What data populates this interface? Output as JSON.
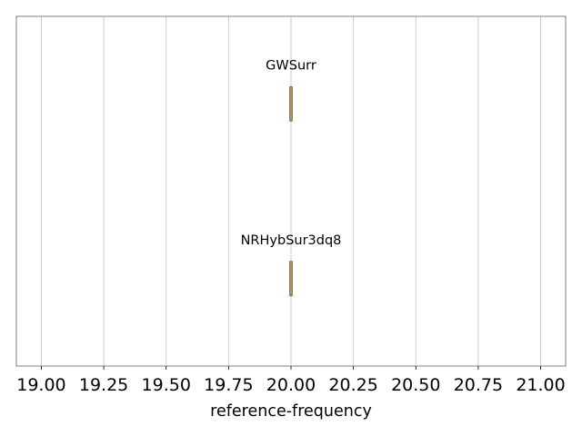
{
  "chart_data": {
    "type": "box",
    "orientation": "horizontal",
    "title": "",
    "xlabel": "reference-frequency",
    "ylabel": "",
    "xlim": [
      18.9,
      21.1
    ],
    "xticks": [
      19.0,
      19.25,
      19.5,
      19.75,
      20.0,
      20.25,
      20.5,
      20.75,
      21.0
    ],
    "xtick_labels": [
      "19.00",
      "19.25",
      "19.50",
      "19.75",
      "20.00",
      "20.25",
      "20.50",
      "20.75",
      "21.00"
    ],
    "grid": {
      "x": true,
      "y": false
    },
    "categories": [
      "GWSurr",
      "NRHybSur3dq8"
    ],
    "values": [
      20.0,
      20.0
    ],
    "box_color": "#c9a27e",
    "box_edge_color": "#8b6b4a",
    "grid_color": "#cccccc",
    "frame_color": "#808080"
  }
}
